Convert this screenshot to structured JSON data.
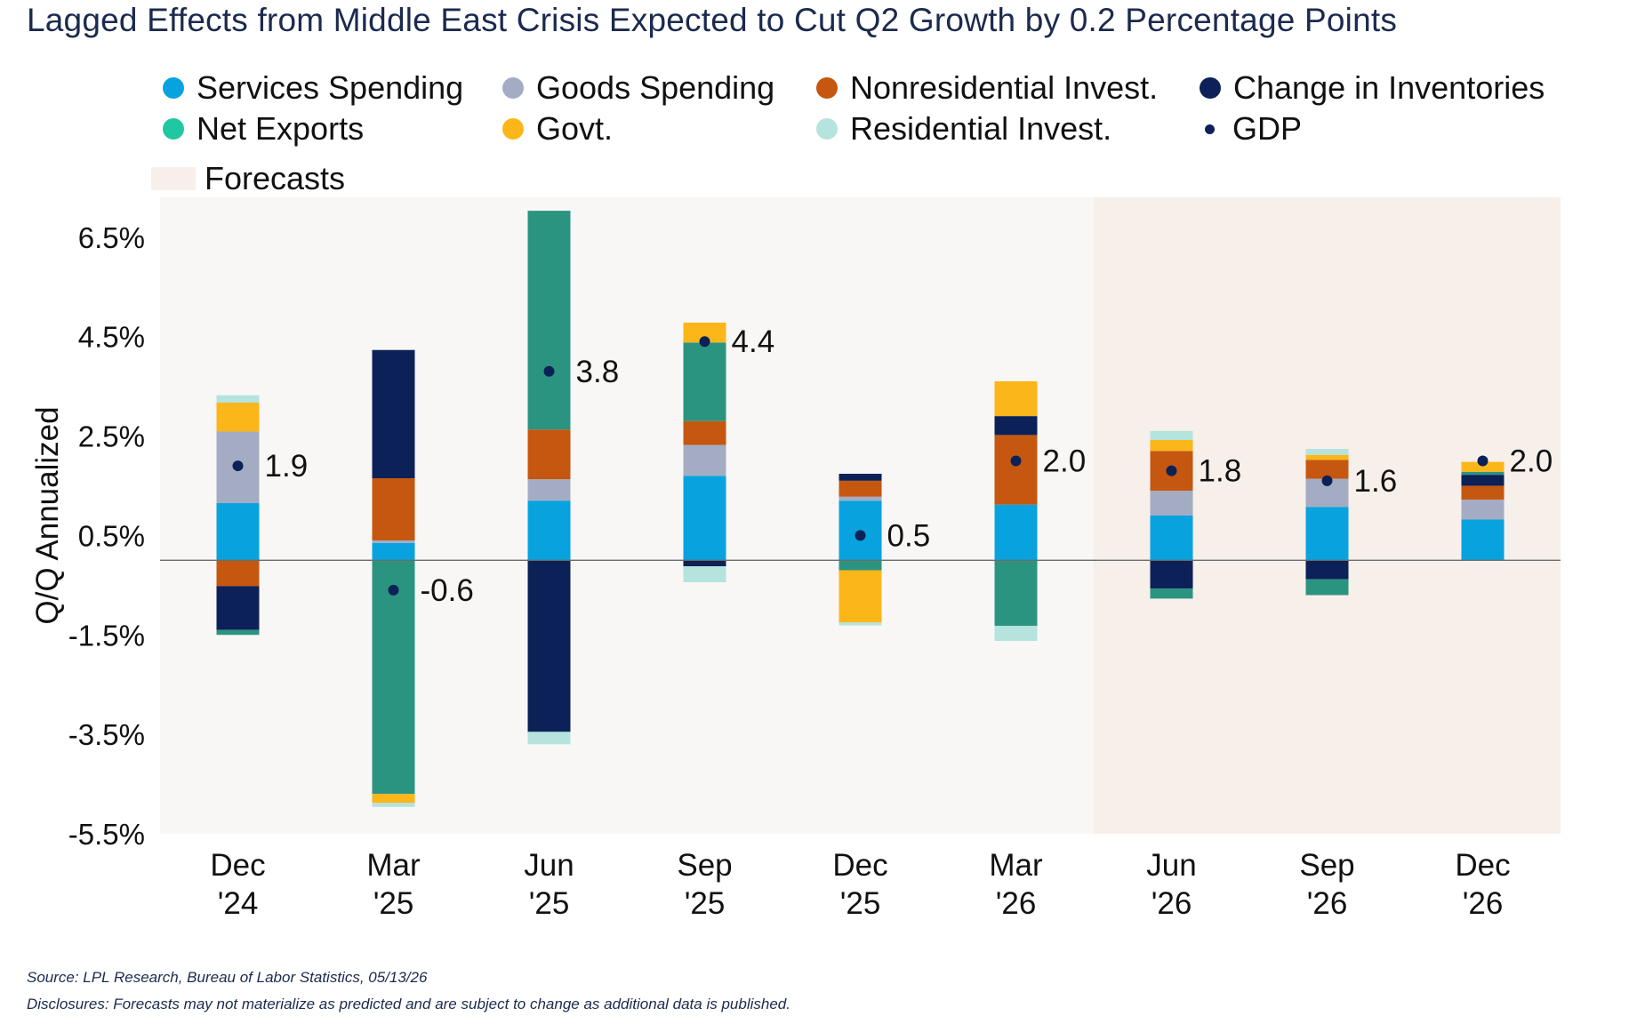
{
  "title": "Lagged Effects from Middle East Crisis Expected to Cut Q2 Growth by 0.2 Percentage Points",
  "footer": {
    "source": "Source: LPL Research, Bureau of Labor Statistics, 05/13/26",
    "disclosure": "Disclosures: Forecasts may not materialize as predicted and are subject to change as additional data is published."
  },
  "legend": {
    "services": "Services Spending",
    "goods": "Goods Spending",
    "nonres": "Nonresidential Invest.",
    "inventories": "Change in Inventories",
    "netexports": "Net Exports",
    "govt": "Govt.",
    "residential": "Residential Invest.",
    "gdp": "GDP",
    "forecasts": "Forecasts"
  },
  "colors": {
    "services": "#08a3df",
    "goods": "#a4acc4",
    "nonres": "#c55710",
    "inventories": "#0c2157",
    "netexports": "#2b9480",
    "govt": "#fbb619",
    "residential": "#b5e3dd",
    "gdp": "#0c2157",
    "plot_bg": "#f8f7f6",
    "forecast_bg": "#f7efea",
    "legend_netexports_dot": "#1fc8a0"
  },
  "chart_data": {
    "type": "bar",
    "stacked": true,
    "ylabel": "Q/Q Annualized",
    "ylim": [
      -5.5,
      7.3
    ],
    "yticks": [
      6.5,
      4.5,
      2.5,
      0.5,
      -1.5,
      -3.5,
      -5.5
    ],
    "ytick_labels": [
      "6.5%",
      "4.5%",
      "2.5%",
      "0.5%",
      "-1.5%",
      "-3.5%",
      "-5.5%"
    ],
    "categories": [
      [
        "Dec",
        "'24"
      ],
      [
        "Mar",
        "'25"
      ],
      [
        "Jun",
        "'25"
      ],
      [
        "Sep",
        "'25"
      ],
      [
        "Dec",
        "'25"
      ],
      [
        "Mar",
        "'26"
      ],
      [
        "Jun",
        "'26"
      ],
      [
        "Sep",
        "'26"
      ],
      [
        "Dec",
        "'26"
      ]
    ],
    "forecast_start_index": 6,
    "series": [
      {
        "name": "Services Spending",
        "key": "services",
        "values": [
          1.15,
          0.35,
          1.2,
          1.7,
          1.2,
          1.12,
          0.9,
          1.07,
          0.82
        ]
      },
      {
        "name": "Goods Spending",
        "key": "goods",
        "values": [
          1.44,
          0.05,
          0.43,
          0.62,
          0.08,
          0.0,
          0.5,
          0.57,
          0.4
        ]
      },
      {
        "name": "Nonresidential Invest.",
        "key": "nonres",
        "values": [
          -0.52,
          1.25,
          1.0,
          0.48,
          0.32,
          1.4,
          0.8,
          0.38,
          0.28
        ]
      },
      {
        "name": "Change in Inventories",
        "key": "inventories",
        "values": [
          -0.88,
          2.58,
          -3.45,
          -0.12,
          0.14,
          0.38,
          -0.57,
          -0.38,
          0.22
        ]
      },
      {
        "name": "Net Exports",
        "key": "netexports",
        "values": [
          -0.1,
          -4.7,
          4.4,
          1.58,
          -0.2,
          -1.32,
          -0.2,
          -0.32,
          0.06
        ]
      },
      {
        "name": "Govt.",
        "key": "govt",
        "values": [
          0.58,
          -0.18,
          0.0,
          0.4,
          -1.05,
          0.7,
          0.22,
          0.1,
          0.2
        ]
      },
      {
        "name": "Residential Invest.",
        "key": "residential",
        "values": [
          0.15,
          -0.08,
          -0.25,
          -0.32,
          -0.06,
          -0.3,
          0.18,
          0.12,
          0.0
        ]
      }
    ],
    "gdp": {
      "name": "GDP",
      "values": [
        1.9,
        -0.6,
        3.8,
        4.4,
        0.5,
        2.0,
        1.8,
        1.6,
        2.0
      ],
      "labels": [
        "1.9",
        "-0.6",
        "3.8",
        "4.4",
        "0.5",
        "2.0",
        "1.8",
        "1.6",
        "2.0"
      ]
    },
    "legend_position": "top"
  }
}
